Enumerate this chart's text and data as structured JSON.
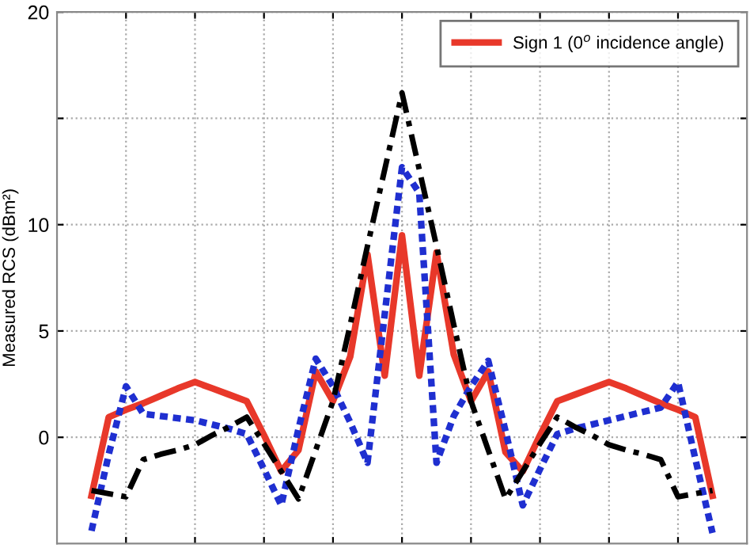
{
  "chart_data": {
    "type": "line",
    "ylabel": "Measured RCS (dBm²)",
    "categories": [
      null,
      null,
      null,
      null,
      null,
      null,
      null,
      null,
      null,
      null,
      null,
      null,
      null,
      null,
      null,
      null,
      null,
      null,
      null,
      null,
      null,
      null,
      null,
      null,
      null,
      null,
      null,
      null,
      null,
      null,
      null,
      null,
      null,
      null,
      null,
      null,
      null
    ],
    "ylim": [
      -5,
      20
    ],
    "yticks": [
      0,
      5,
      10,
      {
        "value": 15,
        "label": null
      },
      20
    ],
    "tick_labels": "y",
    "grid": true,
    "legend": "top right",
    "marker": "none",
    "series": [
      {
        "name": "Sign 1 (0$^{o}$ incidence angle)",
        "color": "#e8382a",
        "line_style": "solid",
        "values": [
          -2.75,
          0.95,
          1.3,
          1.6,
          1.95,
          2.3,
          2.6,
          2.3,
          2.0,
          1.7,
          0.1,
          -1.6,
          -0.6,
          3.1,
          1.7,
          3.8,
          8.6,
          2.9,
          9.5,
          2.9,
          8.7,
          3.9,
          1.7,
          3.1,
          -0.7,
          -1.6,
          0.1,
          1.7,
          2.0,
          2.3,
          2.6,
          2.3,
          1.95,
          1.6,
          1.3,
          0.95,
          -2.75
        ]
      },
      {
        "color": "#1f2fd0",
        "line_style": "dotted",
        "values": [
          -4.4,
          -0.8,
          2.4,
          1.1,
          1.0,
          0.9,
          0.8,
          0.6,
          0.4,
          0.15,
          -1.5,
          -3.2,
          0.4,
          3.7,
          2.4,
          0.7,
          -1.2,
          5.8,
          12.7,
          11.5,
          -1.2,
          1.0,
          2.4,
          3.6,
          0.3,
          -3.2,
          -1.5,
          0.15,
          0.4,
          0.6,
          0.8,
          1.0,
          1.2,
          1.4,
          2.6,
          -1.0,
          -4.5
        ]
      },
      {
        "color": "#000000",
        "line_style": "dashdot",
        "values": [
          -2.5,
          -2.65,
          -2.8,
          -1.05,
          -0.8,
          -0.6,
          -0.35,
          0.1,
          0.5,
          0.95,
          -0.3,
          -1.6,
          -2.9,
          -0.6,
          1.7,
          5.3,
          9.0,
          12.6,
          16.2,
          12.6,
          9.0,
          5.3,
          1.7,
          -0.6,
          -2.9,
          -1.6,
          -0.3,
          0.95,
          0.5,
          0.1,
          -0.35,
          -0.6,
          -0.8,
          -1.05,
          -2.8,
          -2.65,
          -2.5
        ]
      }
    ]
  }
}
